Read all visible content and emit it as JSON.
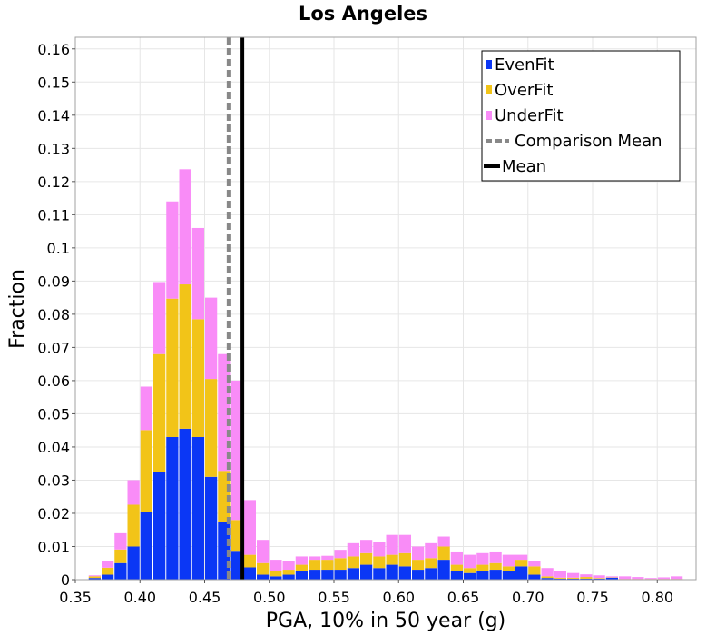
{
  "chart_data": {
    "type": "bar",
    "title": "Los Angeles",
    "xlabel": "PGA, 10% in 50 year (g)",
    "ylabel": "Fraction",
    "xlim": [
      0.35,
      0.83
    ],
    "ylim": [
      0,
      0.1635
    ],
    "bin_width": 0.01,
    "stacked": true,
    "grid": true,
    "legend_position": "top-right",
    "x_ticks": [
      "0.35",
      "0.40",
      "0.45",
      "0.50",
      "0.55",
      "0.60",
      "0.65",
      "0.70",
      "0.75",
      "0.80"
    ],
    "y_ticks": [
      "0",
      "0.01",
      "0.02",
      "0.03",
      "0.04",
      "0.05",
      "0.06",
      "0.07",
      "0.08",
      "0.09",
      "0.1",
      "0.11",
      "0.12",
      "0.13",
      "0.14",
      "0.15",
      "0.16"
    ],
    "bin_centers": [
      0.365,
      0.375,
      0.385,
      0.395,
      0.405,
      0.415,
      0.425,
      0.435,
      0.445,
      0.455,
      0.465,
      0.475,
      0.485,
      0.495,
      0.505,
      0.515,
      0.525,
      0.535,
      0.545,
      0.555,
      0.565,
      0.575,
      0.585,
      0.595,
      0.605,
      0.615,
      0.625,
      0.635,
      0.645,
      0.655,
      0.665,
      0.675,
      0.685,
      0.695,
      0.705,
      0.715,
      0.725,
      0.735,
      0.745,
      0.755,
      0.765,
      0.775,
      0.785,
      0.795,
      0.805,
      0.815
    ],
    "series": [
      {
        "name": "EvenFit",
        "color": "#0b37f5",
        "values": [
          0.0005,
          0.0015,
          0.005,
          0.01,
          0.0205,
          0.0325,
          0.043,
          0.0455,
          0.043,
          0.031,
          0.0175,
          0.0087,
          0.0037,
          0.0015,
          0.001,
          0.0015,
          0.0025,
          0.003,
          0.003,
          0.003,
          0.0035,
          0.0045,
          0.0035,
          0.0045,
          0.004,
          0.003,
          0.0035,
          0.006,
          0.0025,
          0.002,
          0.0025,
          0.003,
          0.0025,
          0.004,
          0.0015,
          0.0005,
          0.0003,
          0.0003,
          0.0003,
          0.0003,
          0.0006,
          0.0001,
          0.0001,
          0.0001,
          0.0001,
          0.0001
        ]
      },
      {
        "name": "OverFit",
        "color": "#f2c418",
        "values": [
          0.0005,
          0.0021,
          0.0041,
          0.0126,
          0.0246,
          0.0355,
          0.0417,
          0.0435,
          0.0355,
          0.0295,
          0.0153,
          0.0093,
          0.0038,
          0.0035,
          0.0015,
          0.0015,
          0.002,
          0.003,
          0.003,
          0.0035,
          0.0035,
          0.0035,
          0.0035,
          0.003,
          0.004,
          0.003,
          0.003,
          0.004,
          0.002,
          0.0015,
          0.002,
          0.002,
          0.0015,
          0.002,
          0.0025,
          0.0005,
          0.0003,
          0.0003,
          0.0005,
          0.0002,
          0.0001,
          0.0001,
          0.0001,
          0.0001,
          0.0001,
          0.0001
        ]
      },
      {
        "name": "UnderFit",
        "color": "#f98cf7",
        "values": [
          0.0003,
          0.0021,
          0.0049,
          0.0074,
          0.0131,
          0.0217,
          0.0293,
          0.0347,
          0.0275,
          0.0245,
          0.0352,
          0.042,
          0.0165,
          0.007,
          0.0035,
          0.0025,
          0.0025,
          0.001,
          0.0012,
          0.0025,
          0.004,
          0.004,
          0.0045,
          0.006,
          0.0055,
          0.004,
          0.0045,
          0.003,
          0.004,
          0.004,
          0.0035,
          0.0035,
          0.0035,
          0.0015,
          0.0015,
          0.0025,
          0.002,
          0.0014,
          0.0008,
          0.0008,
          0.0003,
          0.0008,
          0.0006,
          0.0003,
          0.0005,
          0.0008
        ]
      }
    ],
    "vertical_lines": [
      {
        "name": "Comparison Mean",
        "x": 0.4685,
        "color": "#888888",
        "style": "dashed"
      },
      {
        "name": "Mean",
        "x": 0.4792,
        "color": "#000000",
        "style": "solid"
      }
    ]
  }
}
